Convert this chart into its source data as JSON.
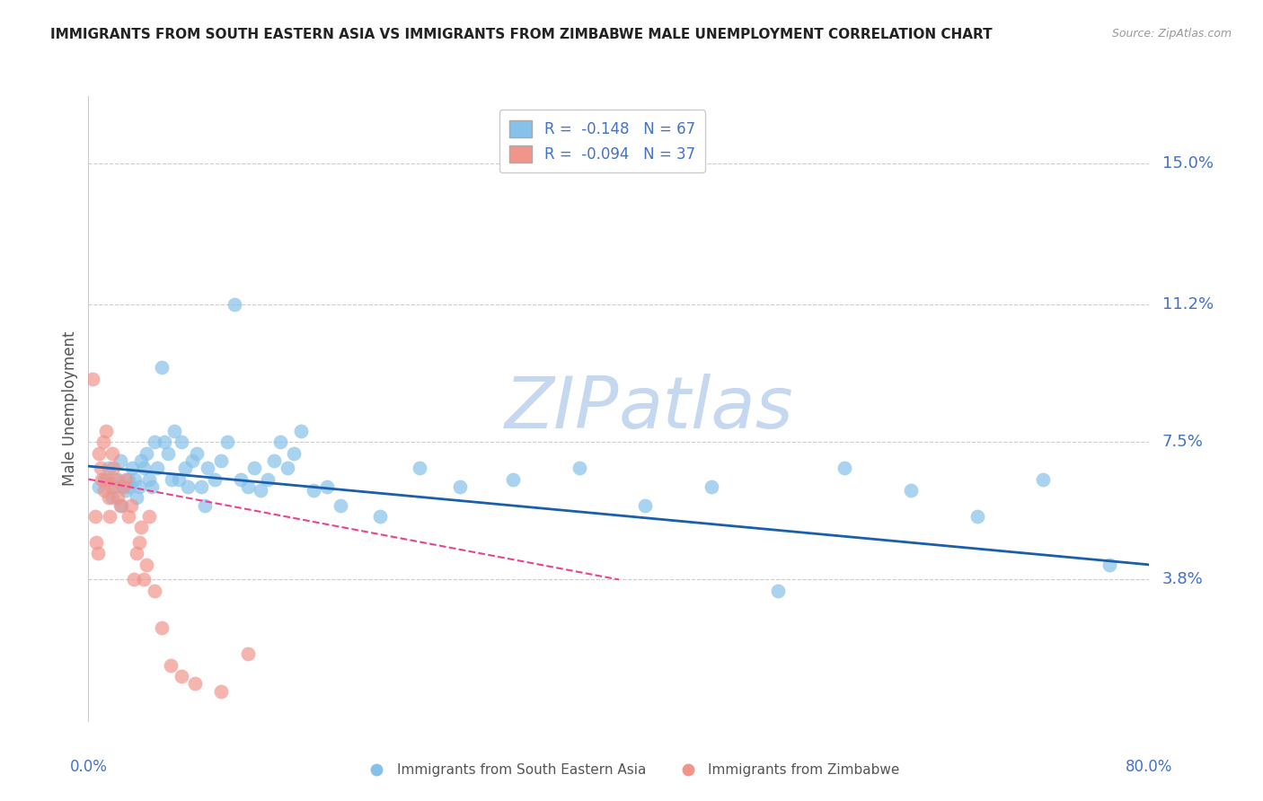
{
  "title": "IMMIGRANTS FROM SOUTH EASTERN ASIA VS IMMIGRANTS FROM ZIMBABWE MALE UNEMPLOYMENT CORRELATION CHART",
  "source": "Source: ZipAtlas.com",
  "ylabel": "Male Unemployment",
  "ytick_labels": [
    "15.0%",
    "11.2%",
    "7.5%",
    "3.8%"
  ],
  "ytick_values": [
    0.15,
    0.112,
    0.075,
    0.038
  ],
  "xmin": 0.0,
  "xmax": 0.8,
  "ymin": 0.0,
  "ymax": 0.168,
  "legend_blue_r": "-0.148",
  "legend_blue_n": "67",
  "legend_pink_r": "-0.094",
  "legend_pink_n": "37",
  "color_blue": "#85C1E9",
  "color_pink": "#F1948A",
  "color_blue_line": "#1A5FAB",
  "color_pink_line": "#E84393",
  "color_axis_labels": "#4472C4",
  "color_title": "#222222",
  "watermark_zip": "#C5D8F0",
  "watermark_atlas": "#C5D8F0",
  "blue_x": [
    0.008,
    0.012,
    0.015,
    0.018,
    0.02,
    0.022,
    0.024,
    0.025,
    0.026,
    0.028,
    0.03,
    0.031,
    0.033,
    0.035,
    0.036,
    0.038,
    0.04,
    0.042,
    0.044,
    0.046,
    0.048,
    0.05,
    0.052,
    0.055,
    0.057,
    0.06,
    0.063,
    0.065,
    0.068,
    0.07,
    0.073,
    0.075,
    0.078,
    0.082,
    0.085,
    0.088,
    0.09,
    0.095,
    0.1,
    0.105,
    0.11,
    0.115,
    0.12,
    0.125,
    0.13,
    0.135,
    0.14,
    0.145,
    0.15,
    0.155,
    0.16,
    0.17,
    0.18,
    0.19,
    0.22,
    0.25,
    0.28,
    0.32,
    0.37,
    0.42,
    0.47,
    0.52,
    0.57,
    0.62,
    0.67,
    0.72,
    0.77
  ],
  "blue_y": [
    0.063,
    0.065,
    0.068,
    0.06,
    0.063,
    0.065,
    0.07,
    0.058,
    0.063,
    0.062,
    0.065,
    0.063,
    0.068,
    0.065,
    0.06,
    0.063,
    0.07,
    0.068,
    0.072,
    0.065,
    0.063,
    0.075,
    0.068,
    0.095,
    0.075,
    0.072,
    0.065,
    0.078,
    0.065,
    0.075,
    0.068,
    0.063,
    0.07,
    0.072,
    0.063,
    0.058,
    0.068,
    0.065,
    0.07,
    0.075,
    0.112,
    0.065,
    0.063,
    0.068,
    0.062,
    0.065,
    0.07,
    0.075,
    0.068,
    0.072,
    0.078,
    0.062,
    0.063,
    0.058,
    0.055,
    0.068,
    0.063,
    0.065,
    0.068,
    0.058,
    0.063,
    0.035,
    0.068,
    0.062,
    0.055,
    0.065,
    0.042
  ],
  "pink_x": [
    0.003,
    0.005,
    0.006,
    0.007,
    0.008,
    0.009,
    0.01,
    0.011,
    0.012,
    0.013,
    0.014,
    0.015,
    0.016,
    0.017,
    0.018,
    0.019,
    0.02,
    0.022,
    0.024,
    0.026,
    0.028,
    0.03,
    0.032,
    0.034,
    0.036,
    0.038,
    0.04,
    0.042,
    0.044,
    0.046,
    0.05,
    0.055,
    0.062,
    0.07,
    0.08,
    0.1,
    0.12
  ],
  "pink_y": [
    0.092,
    0.055,
    0.048,
    0.045,
    0.072,
    0.068,
    0.065,
    0.075,
    0.062,
    0.078,
    0.065,
    0.06,
    0.055,
    0.063,
    0.072,
    0.068,
    0.065,
    0.06,
    0.058,
    0.063,
    0.065,
    0.055,
    0.058,
    0.038,
    0.045,
    0.048,
    0.052,
    0.038,
    0.042,
    0.055,
    0.035,
    0.025,
    0.015,
    0.012,
    0.01,
    0.008,
    0.018
  ],
  "blue_trend_x": [
    0.0,
    0.8
  ],
  "blue_trend_y": [
    0.0685,
    0.042
  ],
  "pink_trend_x": [
    0.0,
    0.4
  ],
  "pink_trend_y": [
    0.065,
    0.038
  ]
}
